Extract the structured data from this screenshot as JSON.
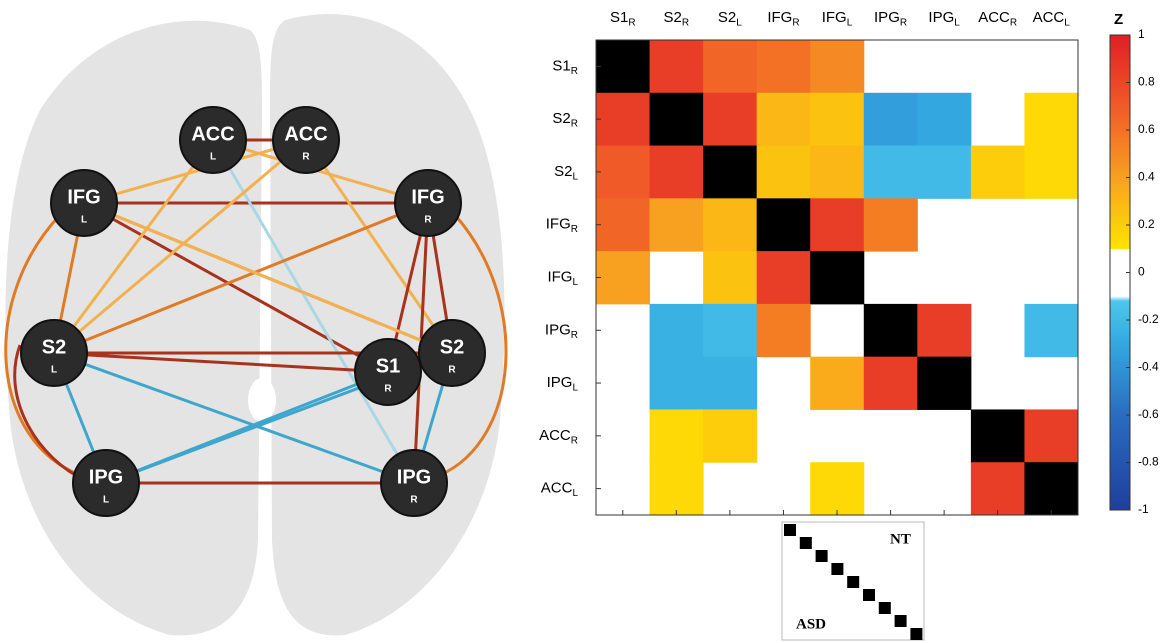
{
  "chart_data": [
    {
      "type": "network",
      "nodes": [
        {
          "text": "ACC",
          "sub": "L"
        },
        {
          "text": "ACC",
          "sub": "R"
        },
        {
          "text": "IFG",
          "sub": "L"
        },
        {
          "text": "IFG",
          "sub": "R"
        },
        {
          "text": "S2",
          "sub": "L"
        },
        {
          "text": "S2",
          "sub": "R"
        },
        {
          "text": "S1",
          "sub": "R"
        },
        {
          "text": "IPG",
          "sub": "L"
        },
        {
          "text": "IPG",
          "sub": "R"
        }
      ]
    },
    {
      "type": "heatmap",
      "labels": [
        {
          "text": "S1",
          "sub": "R"
        },
        {
          "text": "S2",
          "sub": "R"
        },
        {
          "text": "S2",
          "sub": "L"
        },
        {
          "text": "IFG",
          "sub": "R"
        },
        {
          "text": "IFG",
          "sub": "L"
        },
        {
          "text": "IPG",
          "sub": "R"
        },
        {
          "text": "IPG",
          "sub": "L"
        },
        {
          "text": "ACC",
          "sub": "R"
        },
        {
          "text": "ACC",
          "sub": "L"
        }
      ],
      "values": [
        [
          null,
          0.85,
          0.65,
          0.6,
          0.5,
          null,
          null,
          null,
          null
        ],
        [
          0.85,
          null,
          0.85,
          0.3,
          0.25,
          -0.35,
          -0.3,
          null,
          0.15
        ],
        [
          0.7,
          0.85,
          null,
          0.25,
          0.3,
          -0.2,
          -0.2,
          0.2,
          0.15
        ],
        [
          0.65,
          0.4,
          0.3,
          null,
          0.85,
          0.55,
          null,
          null,
          null
        ],
        [
          0.4,
          null,
          0.25,
          0.85,
          null,
          null,
          null,
          null,
          null
        ],
        [
          null,
          -0.25,
          -0.2,
          0.55,
          null,
          null,
          0.85,
          null,
          -0.2
        ],
        [
          null,
          -0.25,
          -0.25,
          null,
          0.35,
          0.85,
          null,
          null,
          null
        ],
        [
          null,
          0.15,
          0.2,
          null,
          null,
          null,
          null,
          null,
          0.85
        ],
        [
          null,
          0.15,
          null,
          null,
          0.15,
          null,
          null,
          0.85,
          null
        ]
      ],
      "colorbar_label": "Z",
      "zlim": [
        -1,
        1
      ],
      "zticks": [
        -1,
        -0.8,
        -0.6,
        -0.4,
        -0.2,
        0,
        0.2,
        0.4,
        0.6,
        0.8,
        1
      ],
      "colorscale": [
        [
          -1,
          "#1f3f9c"
        ],
        [
          -0.6,
          "#2a6cc0"
        ],
        [
          -0.3,
          "#33a8e0"
        ],
        [
          -0.12,
          "#4cc8ec"
        ],
        [
          -0.1,
          "#ffffff"
        ],
        [
          0.1,
          "#ffffff"
        ],
        [
          0.1,
          "#ffe400"
        ],
        [
          0.4,
          "#f8a020"
        ],
        [
          0.7,
          "#f05a28"
        ],
        [
          1,
          "#e01f26"
        ]
      ],
      "diagonal_color": "#000000",
      "legend": {
        "upper": "NT",
        "lower": "ASD"
      }
    }
  ]
}
